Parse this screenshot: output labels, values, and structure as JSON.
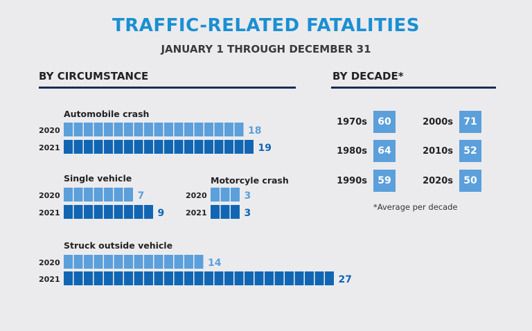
{
  "header": {
    "title": "TRAFFIC-RELATED FATALITIES",
    "subtitle": "JANUARY 1 THROUGH DECEMBER 31"
  },
  "sections": {
    "circumstance_title": "BY CIRCUMSTANCE",
    "decade_title": "BY DECADE*"
  },
  "colors": {
    "light_bar": "#5b9fdb",
    "dark_bar": "#1166b3",
    "title": "#1b8fd2",
    "rule": "#1c2a55"
  },
  "chart_data": [
    {
      "type": "bar",
      "title": "BY CIRCUMSTANCE",
      "categories": [
        "Automobile crash",
        "Single vehicle",
        "Motorcyle crash",
        "Struck outside vehicle"
      ],
      "series": [
        {
          "name": "2020",
          "values": [
            18,
            7,
            3,
            14
          ]
        },
        {
          "name": "2021",
          "values": [
            19,
            9,
            3,
            27
          ]
        }
      ]
    },
    {
      "type": "table",
      "title": "BY DECADE*",
      "categories": [
        "1970s",
        "1980s",
        "1990s",
        "2000s",
        "2010s",
        "2020s"
      ],
      "values": [
        60,
        64,
        59,
        71,
        52,
        50
      ]
    }
  ],
  "decades_left": [
    {
      "label": "1970s",
      "value": "60"
    },
    {
      "label": "1980s",
      "value": "64"
    },
    {
      "label": "1990s",
      "value": "59"
    }
  ],
  "decades_right": [
    {
      "label": "2000s",
      "value": "71"
    },
    {
      "label": "2010s",
      "value": "52"
    },
    {
      "label": "2020s",
      "value": "50"
    }
  ],
  "footnote": "*Average per decade"
}
